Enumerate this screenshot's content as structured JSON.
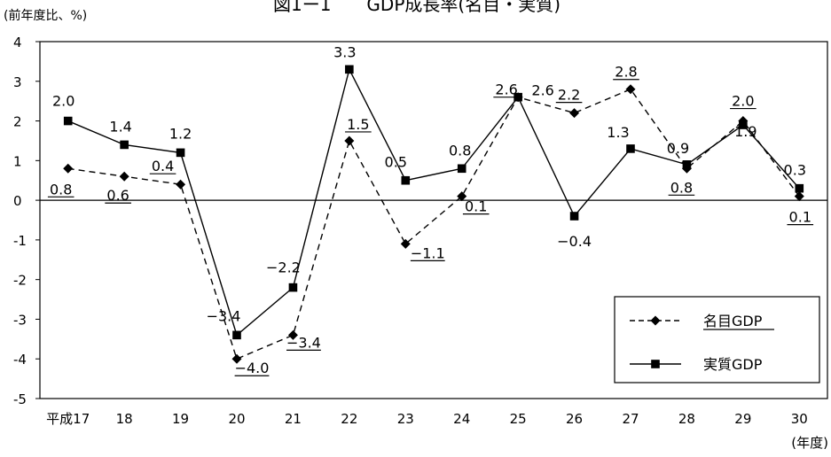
{
  "chart_data": {
    "type": "line",
    "title": "図1ー1　　GDP成長率(名目・実質)",
    "ylabel": "(前年度比、%)",
    "xlabel": "(年度)",
    "categories": [
      "平成17",
      "18",
      "19",
      "20",
      "21",
      "22",
      "23",
      "24",
      "25",
      "26",
      "27",
      "28",
      "29",
      "30"
    ],
    "ylim": [
      -5,
      4
    ],
    "yticks": [
      "4",
      "3",
      "2",
      "1",
      "0",
      "-1",
      "-2",
      "-3",
      "-4",
      "-5"
    ],
    "grid": false,
    "legend_position": "bottom-right",
    "series": [
      {
        "name": "名目GDP",
        "line_style": "dashed",
        "marker": "diamond",
        "color": "#000000",
        "values": [
          0.8,
          0.6,
          0.4,
          -4.0,
          -3.4,
          1.5,
          -1.1,
          0.1,
          2.6,
          2.2,
          2.8,
          0.8,
          2.0,
          0.1
        ],
        "labels": [
          "0.8",
          "0.6",
          "0.4",
          "−4.0",
          "−3.4",
          "1.5",
          "−1.1",
          "0.1",
          "2.6",
          "2.2",
          "2.8",
          "0.8",
          "2.0",
          "0.1"
        ]
      },
      {
        "name": "実質GDP",
        "line_style": "solid",
        "marker": "square",
        "color": "#000000",
        "values": [
          2.0,
          1.4,
          1.2,
          -3.4,
          -2.2,
          3.3,
          0.5,
          0.8,
          2.6,
          -0.4,
          1.3,
          0.9,
          1.9,
          0.3
        ],
        "labels": [
          "2.0",
          "1.4",
          "1.2",
          "−3.4",
          "−2.2",
          "3.3",
          "0.5",
          "0.8",
          "2.6",
          "−0.4",
          "1.3",
          "0.9",
          "1.9",
          "0.3"
        ]
      }
    ]
  }
}
